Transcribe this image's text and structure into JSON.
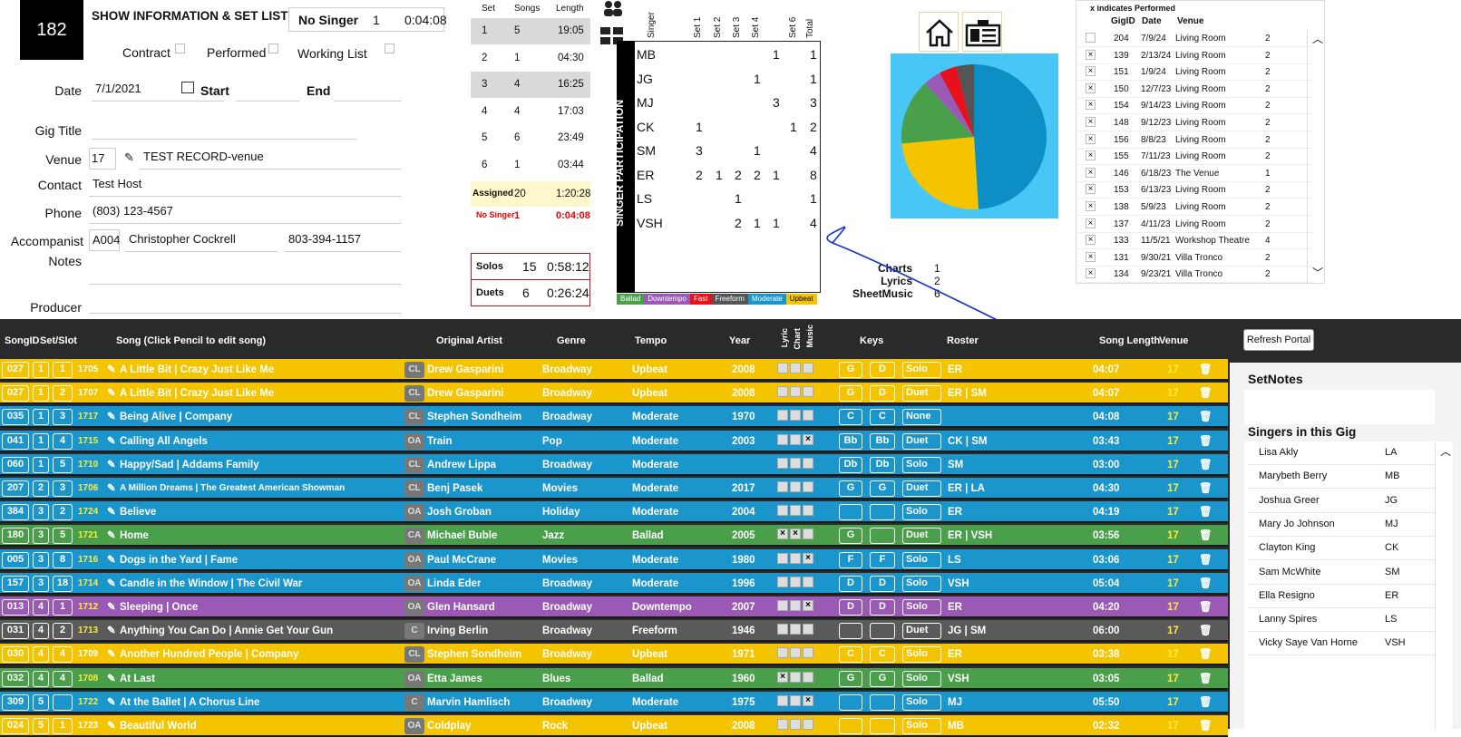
{
  "header": {
    "gig_id": "182",
    "title": "SHOW INFORMATION & SET LIST",
    "no_singer_label": "No Singer",
    "no_singer_count": "1",
    "no_singer_time": "0:04:08"
  },
  "flags": {
    "contract": "Contract",
    "performed": "Performed",
    "working_list": "Working List"
  },
  "form": {
    "date_label": "Date",
    "date": "7/1/2021",
    "start_label": "Start",
    "end_label": "End",
    "gig_title_label": "Gig Title",
    "venue_label": "Venue",
    "venue_id": "17",
    "venue_name": "TEST RECORD-venue",
    "contact_label": "Contact",
    "contact": "Test Host",
    "phone_label": "Phone",
    "phone": "(803) 123-4567",
    "accompanist_label": "Accompanist",
    "acc_id": "A004",
    "acc_name": "Christopher Cockrell",
    "acc_phone": "803-394-1157",
    "notes_label": "Notes",
    "producer_label": "Producer"
  },
  "sets": {
    "headers": [
      "Set",
      "Songs",
      "Length"
    ],
    "rows": [
      [
        "1",
        "5",
        "19:05"
      ],
      [
        "2",
        "1",
        "04:30"
      ],
      [
        "3",
        "4",
        "16:25"
      ],
      [
        "4",
        "4",
        "17:03"
      ],
      [
        "5",
        "6",
        "23:49"
      ],
      [
        "6",
        "1",
        "03:44"
      ]
    ],
    "assigned": [
      "Assigned",
      "20",
      "1:20:28"
    ],
    "no_singer": [
      "No Singer",
      "1",
      "0:04:08"
    ]
  },
  "solos": {
    "label": "Solos",
    "count": "15",
    "time": "0:58:12"
  },
  "duets": {
    "label": "Duets",
    "count": "6",
    "time": "0:26:24"
  },
  "participation": {
    "side_label": "SINGER PARTICIPATION",
    "headers": [
      "Singer",
      "Set 1",
      "Set 2",
      "Set 3",
      "Set 4",
      "",
      "Set 6",
      "Total"
    ],
    "rows": [
      [
        "MB",
        "",
        "",
        "",
        "",
        "1",
        "",
        "1"
      ],
      [
        "JG",
        "",
        "",
        "",
        "1",
        "",
        "",
        "1"
      ],
      [
        "MJ",
        "",
        "",
        "",
        "",
        "3",
        "",
        "3"
      ],
      [
        "CK",
        "1",
        "",
        "",
        "",
        "",
        "1",
        "2"
      ],
      [
        "SM",
        "3",
        "",
        "",
        "1",
        "",
        "",
        "4"
      ],
      [
        "ER",
        "2",
        "1",
        "2",
        "2",
        "1",
        "",
        "8"
      ],
      [
        "LS",
        "",
        "",
        "1",
        "",
        "",
        "",
        "1"
      ],
      [
        "VSH",
        "",
        "",
        "2",
        "1",
        "1",
        "",
        "4"
      ]
    ],
    "legend": [
      {
        "label": "Ballad",
        "color": "#4aa04a"
      },
      {
        "label": "Downtempo",
        "color": "#9b59b6"
      },
      {
        "label": "Fast",
        "color": "#e8101a"
      },
      {
        "label": "Freeform",
        "color": "#555555"
      },
      {
        "label": "Moderate",
        "color": "#1a96cc"
      },
      {
        "label": "Upbeat",
        "color": "#f5c400"
      }
    ]
  },
  "pie": {
    "slices": [
      {
        "label": "Moderate",
        "value": 50,
        "color": "#0d8fc6"
      },
      {
        "label": "Upbeat",
        "value": 25,
        "color": "#f5c400"
      },
      {
        "label": "Ballad",
        "value": 15,
        "color": "#4aa04a"
      },
      {
        "label": "Downtempo",
        "value": 4,
        "color": "#9b59b6"
      },
      {
        "label": "Fast",
        "value": 4,
        "color": "#e8101a"
      },
      {
        "label": "Freeform",
        "value": 4,
        "color": "#555555"
      }
    ]
  },
  "resources": {
    "charts_label": "Charts",
    "charts": "1",
    "lyrics_label": "Lyrics",
    "lyrics": "2",
    "sheet_label": "SheetMusic",
    "sheet": "6"
  },
  "history": {
    "note": "x indicates Performed",
    "headers": [
      "GigID",
      "Date",
      "Venue"
    ],
    "rows": [
      [
        "",
        "204",
        "7/9/24",
        "Living Room",
        "2"
      ],
      [
        "×",
        "139",
        "2/13/24",
        "Living Room",
        "2"
      ],
      [
        "×",
        "151",
        "1/9/24",
        "Living Room",
        "2"
      ],
      [
        "×",
        "150",
        "12/7/23",
        "Living Room",
        "2"
      ],
      [
        "×",
        "154",
        "9/14/23",
        "Living Room",
        "2"
      ],
      [
        "×",
        "148",
        "9/12/23",
        "Living Room",
        "2"
      ],
      [
        "×",
        "156",
        "8/8/23",
        "Living Room",
        "2"
      ],
      [
        "×",
        "155",
        "7/11/23",
        "Living Room",
        "2"
      ],
      [
        "×",
        "146",
        "6/18/23",
        "The Venue",
        "1"
      ],
      [
        "×",
        "153",
        "6/13/23",
        "Living Room",
        "2"
      ],
      [
        "×",
        "138",
        "5/9/23",
        "Living Room",
        "2"
      ],
      [
        "×",
        "137",
        "4/11/23",
        "Living Room",
        "2"
      ],
      [
        "×",
        "133",
        "11/5/21",
        "Workshop Theatre",
        "4"
      ],
      [
        "×",
        "131",
        "9/30/21",
        "Villa Tronco",
        "2"
      ],
      [
        "×",
        "134",
        "9/23/21",
        "Villa Tronco",
        "2"
      ]
    ]
  },
  "table": {
    "headers": {
      "songid": "SongID",
      "setslot": "Set/Slot",
      "song": "Song (Click Pencil to edit song)",
      "artist": "Original Artist",
      "genre": "Genre",
      "tempo": "Tempo",
      "year": "Year",
      "lyric": "Lyric",
      "chart": "Chart",
      "music": "Music",
      "keys": "Keys",
      "roster": "Roster",
      "length": "Song Length",
      "venue": "Venue"
    },
    "refresh": "Refresh Portal",
    "rows": [
      {
        "id": "027",
        "set": "1",
        "slot": "1",
        "num": "1705",
        "title": "A Little Bit | Crazy Just Like Me",
        "tag": "CL",
        "artist": "Drew Gasparini",
        "genre": "Broadway",
        "tempo": "Upbeat",
        "year": "2008",
        "m": [
          "",
          "",
          ""
        ],
        "k1": "G",
        "k2": "D",
        "type": "Solo",
        "roster": "ER",
        "len": "04:07",
        "venue": "17",
        "color": "#f5c400"
      },
      {
        "id": "027",
        "set": "1",
        "slot": "2",
        "num": "1707",
        "title": "A Little Bit | Crazy Just Like Me",
        "tag": "CL",
        "artist": "Drew Gasparini",
        "genre": "Broadway",
        "tempo": "Upbeat",
        "year": "2008",
        "m": [
          "",
          "",
          ""
        ],
        "k1": "G",
        "k2": "D",
        "type": "Duet",
        "roster": "ER | SM",
        "len": "04:07",
        "venue": "17",
        "color": "#f5c400"
      },
      {
        "id": "035",
        "set": "1",
        "slot": "3",
        "num": "1717",
        "title": "Being Alive | Company",
        "tag": "CL",
        "artist": "Stephen Sondheim",
        "genre": "Broadway",
        "tempo": "Moderate",
        "year": "1970",
        "m": [
          "",
          "",
          ""
        ],
        "k1": "C",
        "k2": "C",
        "type": "None",
        "roster": "",
        "len": "04:08",
        "venue": "17",
        "color": "#1a96cc"
      },
      {
        "id": "041",
        "set": "1",
        "slot": "4",
        "num": "1715",
        "title": "Calling All Angels",
        "tag": "OA",
        "artist": "Train",
        "genre": "Pop",
        "tempo": "Moderate",
        "year": "2003",
        "m": [
          "",
          "",
          "×"
        ],
        "k1": "Bb",
        "k2": "Bb",
        "type": "Duet",
        "roster": "CK | SM",
        "len": "03:43",
        "venue": "17",
        "color": "#1a96cc"
      },
      {
        "id": "060",
        "set": "1",
        "slot": "5",
        "num": "1710",
        "title": "Happy/Sad | Addams Family",
        "tag": "CL",
        "artist": "Andrew Lippa",
        "genre": "Broadway",
        "tempo": "Moderate",
        "year": "",
        "m": [
          "",
          "",
          ""
        ],
        "k1": "Db",
        "k2": "Db",
        "type": "Solo",
        "roster": "SM",
        "len": "03:00",
        "venue": "17",
        "color": "#1a96cc"
      },
      {
        "id": "207",
        "set": "2",
        "slot": "3",
        "num": "1706",
        "title": "A Million Dreams | The Greatest American Showman",
        "tag": "CL",
        "artist": "Benj Pasek",
        "genre": "Movies",
        "tempo": "Moderate",
        "year": "2017",
        "m": [
          "",
          "",
          ""
        ],
        "k1": "G",
        "k2": "G",
        "type": "Duet",
        "roster": "ER | LA",
        "len": "04:30",
        "venue": "17",
        "color": "#1a96cc"
      },
      {
        "id": "384",
        "set": "3",
        "slot": "2",
        "num": "1724",
        "title": "Believe",
        "tag": "OA",
        "artist": "Josh Groban",
        "genre": "Holiday",
        "tempo": "Moderate",
        "year": "2004",
        "m": [
          "",
          "",
          ""
        ],
        "k1": "",
        "k2": "",
        "type": "Solo",
        "roster": "ER",
        "len": "04:19",
        "venue": "17",
        "color": "#1a96cc"
      },
      {
        "id": "180",
        "set": "3",
        "slot": "5",
        "num": "1721",
        "title": "Home",
        "tag": "CA",
        "artist": "Michael Buble",
        "genre": "Jazz",
        "tempo": "Ballad",
        "year": "2005",
        "m": [
          "×",
          "×",
          ""
        ],
        "k1": "G",
        "k2": "",
        "type": "Duet",
        "roster": "ER | VSH",
        "len": "03:56",
        "venue": "17",
        "color": "#4aa04a"
      },
      {
        "id": "005",
        "set": "3",
        "slot": "8",
        "num": "1716",
        "title": "Dogs in the Yard | Fame",
        "tag": "OA",
        "artist": "Paul McCrane",
        "genre": "Movies",
        "tempo": "Moderate",
        "year": "1980",
        "m": [
          "",
          "",
          "×"
        ],
        "k1": "F",
        "k2": "F",
        "type": "Solo",
        "roster": "LS",
        "len": "03:06",
        "venue": "17",
        "color": "#1a96cc"
      },
      {
        "id": "157",
        "set": "3",
        "slot": "18",
        "num": "1714",
        "title": "Candle in the Window | The Civil War",
        "tag": "OA",
        "artist": "Linda Eder",
        "genre": "Broadway",
        "tempo": "Moderate",
        "year": "1996",
        "m": [
          "",
          "",
          ""
        ],
        "k1": "D",
        "k2": "D",
        "type": "Solo",
        "roster": "VSH",
        "len": "05:04",
        "venue": "17",
        "color": "#1a96cc"
      },
      {
        "id": "013",
        "set": "4",
        "slot": "1",
        "num": "1712",
        "title": "Sleeping | Once",
        "tag": "OA",
        "artist": "Glen Hansard",
        "genre": "Broadway",
        "tempo": "Downtempo",
        "year": "2007",
        "m": [
          "",
          "",
          "×"
        ],
        "k1": "D",
        "k2": "D",
        "type": "Solo",
        "roster": "ER",
        "len": "04:20",
        "venue": "17",
        "color": "#9b59b6"
      },
      {
        "id": "031",
        "set": "4",
        "slot": "2",
        "num": "1713",
        "title": "Anything You Can Do | Annie Get Your Gun",
        "tag": "C",
        "artist": "Irving Berlin",
        "genre": "Broadway",
        "tempo": "Freeform",
        "year": "1946",
        "m": [
          "",
          "",
          ""
        ],
        "k1": "",
        "k2": "",
        "type": "Duet",
        "roster": "JG | SM",
        "len": "06:00",
        "venue": "17",
        "color": "#5a5a5a"
      },
      {
        "id": "030",
        "set": "4",
        "slot": "4",
        "num": "1709",
        "title": "Another Hundred People | Company",
        "tag": "CL",
        "artist": "Stephen Sondheim",
        "genre": "Broadway",
        "tempo": "Upbeat",
        "year": "1971",
        "m": [
          "",
          "",
          ""
        ],
        "k1": "C",
        "k2": "C",
        "type": "Solo",
        "roster": "ER",
        "len": "03:38",
        "venue": "17",
        "color": "#f5c400"
      },
      {
        "id": "032",
        "set": "4",
        "slot": "4",
        "num": "1708",
        "title": "At Last",
        "tag": "OA",
        "artist": "Etta James",
        "genre": "Blues",
        "tempo": "Ballad",
        "year": "1960",
        "m": [
          "×",
          "",
          ""
        ],
        "k1": "G",
        "k2": "G",
        "type": "Solo",
        "roster": "VSH",
        "len": "03:05",
        "venue": "17",
        "color": "#4aa04a"
      },
      {
        "id": "309",
        "set": "5",
        "slot": "",
        "num": "1722",
        "title": "At the Ballet | A Chorus Line",
        "tag": "C",
        "artist": "Marvin Hamlisch",
        "genre": "Broadway",
        "tempo": "Moderate",
        "year": "1975",
        "m": [
          "",
          "",
          "×"
        ],
        "k1": "",
        "k2": "",
        "type": "Solo",
        "roster": "MJ",
        "len": "05:50",
        "venue": "17",
        "color": "#1a96cc"
      },
      {
        "id": "024",
        "set": "5",
        "slot": "1",
        "num": "1723",
        "title": "Beautiful World",
        "tag": "OA",
        "artist": "Coldplay",
        "genre": "Rock",
        "tempo": "Upbeat",
        "year": "2008",
        "m": [
          "",
          "",
          ""
        ],
        "k1": "",
        "k2": "",
        "type": "Solo",
        "roster": "MB",
        "len": "02:32",
        "venue": "17",
        "color": "#f5c400"
      }
    ]
  },
  "side": {
    "setnotes": "SetNotes",
    "singers_title": "Singers in this Gig",
    "singers": [
      [
        "Lisa Akly",
        "LA"
      ],
      [
        "Marybeth Berry",
        "MB"
      ],
      [
        "Joshua Greer",
        "JG"
      ],
      [
        "Mary Jo Johnson",
        "MJ"
      ],
      [
        "Clayton King",
        "CK"
      ],
      [
        "Sam McWhite",
        "SM"
      ],
      [
        "Ella Resigno",
        "ER"
      ],
      [
        "Lanny Spires",
        "LS"
      ],
      [
        "Vicky Saye Van Horne",
        "VSH"
      ]
    ]
  }
}
